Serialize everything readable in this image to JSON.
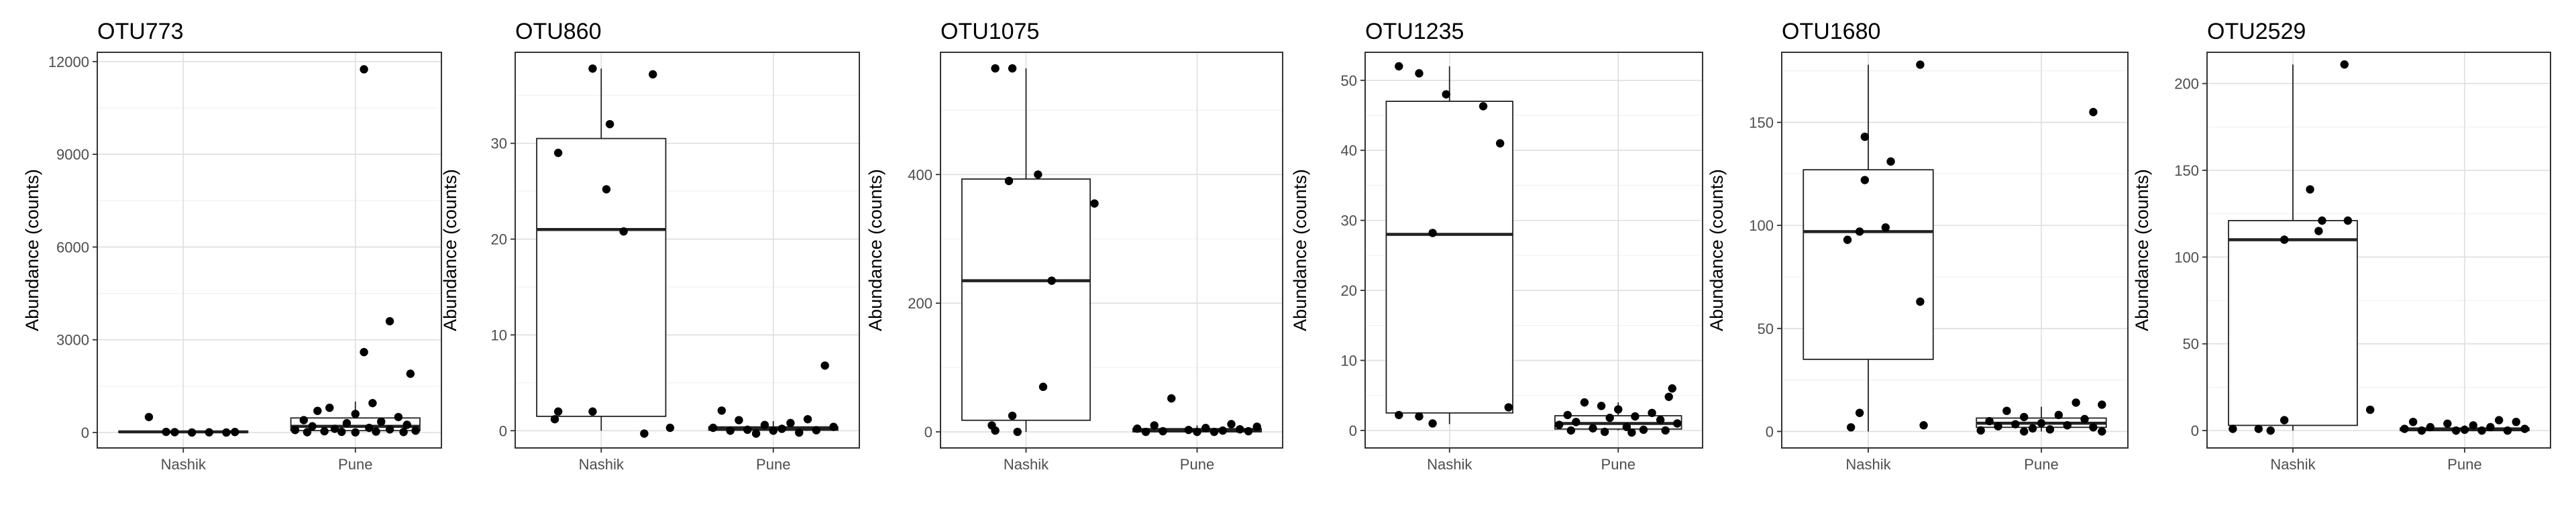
{
  "figure": {
    "background": "#ffffff",
    "panel_border_color": "#333333",
    "grid_major_color": "#dedede",
    "grid_minor_color": "#f0f0f0",
    "axis_text_color": "#4d4d4d",
    "box_outline_color": "#222222",
    "box_fill_color": "#ffffff",
    "point_color": "#000000",
    "title_color": "#000000"
  },
  "chart_data": [
    {
      "type": "box",
      "title": "OTU773",
      "ylabel": "Abundance (counts)",
      "xlabel": "",
      "categories": [
        "Nashik",
        "Pune"
      ],
      "ylim": [
        -500,
        12300
      ],
      "yticks": [
        0,
        3000,
        6000,
        9000,
        12000
      ],
      "ytick_labels": [
        "0",
        "3000",
        "6000",
        "9000",
        "12000"
      ],
      "grid": true,
      "boxes": [
        {
          "category": "Nashik",
          "q1": 5,
          "median": 20,
          "q3": 40,
          "whisker_low": 0,
          "whisker_high": 60,
          "points": [
            {
              "dx": -0.2,
              "y": 500
            },
            {
              "dx": -0.05,
              "y": 10
            },
            {
              "dx": 0.15,
              "y": 5
            },
            {
              "dx": 0.25,
              "y": 0
            },
            {
              "dx": 0.05,
              "y": 0
            },
            {
              "dx": -0.1,
              "y": 20
            },
            {
              "dx": 0.3,
              "y": 15
            }
          ]
        },
        {
          "category": "Pune",
          "q1": 60,
          "median": 200,
          "q3": 470,
          "whisker_low": 0,
          "whisker_high": 1000,
          "points": [
            {
              "dx": 0.05,
              "y": 11750
            },
            {
              "dx": 0.2,
              "y": 3600
            },
            {
              "dx": 0.05,
              "y": 2600
            },
            {
              "dx": 0.32,
              "y": 1900
            },
            {
              "dx": 0.1,
              "y": 950
            },
            {
              "dx": -0.15,
              "y": 800
            },
            {
              "dx": -0.22,
              "y": 700
            },
            {
              "dx": 0.0,
              "y": 600
            },
            {
              "dx": 0.25,
              "y": 500
            },
            {
              "dx": -0.3,
              "y": 400
            },
            {
              "dx": 0.15,
              "y": 350
            },
            {
              "dx": -0.05,
              "y": 300
            },
            {
              "dx": 0.3,
              "y": 250
            },
            {
              "dx": -0.25,
              "y": 200
            },
            {
              "dx": 0.08,
              "y": 150
            },
            {
              "dx": -0.12,
              "y": 120
            },
            {
              "dx": 0.2,
              "y": 100
            },
            {
              "dx": -0.35,
              "y": 80
            },
            {
              "dx": 0.35,
              "y": 60
            },
            {
              "dx": -0.18,
              "y": 40
            },
            {
              "dx": 0.12,
              "y": 30
            },
            {
              "dx": -0.08,
              "y": 20
            },
            {
              "dx": 0.28,
              "y": 15
            },
            {
              "dx": -0.28,
              "y": 10
            },
            {
              "dx": 0.0,
              "y": 5
            }
          ]
        }
      ]
    },
    {
      "type": "box",
      "title": "OTU860",
      "ylabel": "Abundance (counts)",
      "xlabel": "",
      "categories": [
        "Nashik",
        "Pune"
      ],
      "ylim": [
        -1.8,
        39.5
      ],
      "yticks": [
        0,
        10,
        20,
        30
      ],
      "ytick_labels": [
        "0",
        "10",
        "20",
        "30"
      ],
      "grid": true,
      "boxes": [
        {
          "category": "Nashik",
          "q1": 1.5,
          "median": 21,
          "q3": 30.5,
          "whisker_low": 0,
          "whisker_high": 37.8,
          "points": [
            {
              "dx": -0.05,
              "y": 37.8
            },
            {
              "dx": 0.3,
              "y": 37.2
            },
            {
              "dx": 0.05,
              "y": 32
            },
            {
              "dx": -0.25,
              "y": 29
            },
            {
              "dx": 0.03,
              "y": 25.2
            },
            {
              "dx": 0.13,
              "y": 20.8
            },
            {
              "dx": -0.25,
              "y": 2
            },
            {
              "dx": -0.05,
              "y": 2
            },
            {
              "dx": -0.27,
              "y": 1.2
            },
            {
              "dx": 0.4,
              "y": 0.3
            },
            {
              "dx": 0.25,
              "y": -0.3
            }
          ]
        },
        {
          "category": "Pune",
          "q1": 0.05,
          "median": 0.2,
          "q3": 0.4,
          "whisker_low": 0,
          "whisker_high": 1.0,
          "points": [
            {
              "dx": 0.3,
              "y": 6.8
            },
            {
              "dx": -0.3,
              "y": 2.1
            },
            {
              "dx": -0.2,
              "y": 1.1
            },
            {
              "dx": 0.2,
              "y": 1.2
            },
            {
              "dx": 0.1,
              "y": 0.8
            },
            {
              "dx": -0.05,
              "y": 0.6
            },
            {
              "dx": 0.35,
              "y": 0.4
            },
            {
              "dx": -0.35,
              "y": 0.3
            },
            {
              "dx": 0.05,
              "y": 0.2
            },
            {
              "dx": -0.15,
              "y": 0.1
            },
            {
              "dx": 0.25,
              "y": 0.05
            },
            {
              "dx": -0.25,
              "y": 0
            },
            {
              "dx": 0.0,
              "y": 0
            },
            {
              "dx": 0.15,
              "y": -0.2
            },
            {
              "dx": -0.1,
              "y": -0.3
            }
          ]
        }
      ]
    },
    {
      "type": "box",
      "title": "OTU1075",
      "ylabel": "Abundance (counts)",
      "xlabel": "",
      "categories": [
        "Nashik",
        "Pune"
      ],
      "ylim": [
        -25,
        590
      ],
      "yticks": [
        0,
        200,
        400
      ],
      "ytick_labels": [
        "0",
        "200",
        "400"
      ],
      "grid": true,
      "boxes": [
        {
          "category": "Nashik",
          "q1": 18,
          "median": 235,
          "q3": 393,
          "whisker_low": 0,
          "whisker_high": 565,
          "points": [
            {
              "dx": -0.18,
              "y": 565
            },
            {
              "dx": -0.08,
              "y": 565
            },
            {
              "dx": 0.07,
              "y": 400
            },
            {
              "dx": -0.1,
              "y": 390
            },
            {
              "dx": 0.4,
              "y": 355
            },
            {
              "dx": 0.15,
              "y": 235
            },
            {
              "dx": 0.1,
              "y": 70
            },
            {
              "dx": -0.08,
              "y": 25
            },
            {
              "dx": -0.2,
              "y": 10
            },
            {
              "dx": -0.18,
              "y": 2
            },
            {
              "dx": -0.05,
              "y": 0
            }
          ]
        },
        {
          "category": "Pune",
          "q1": 0,
          "median": 2,
          "q3": 5,
          "whisker_low": 0,
          "whisker_high": 10,
          "points": [
            {
              "dx": -0.15,
              "y": 52
            },
            {
              "dx": 0.2,
              "y": 12
            },
            {
              "dx": -0.25,
              "y": 10
            },
            {
              "dx": 0.35,
              "y": 8
            },
            {
              "dx": 0.05,
              "y": 6
            },
            {
              "dx": -0.35,
              "y": 5
            },
            {
              "dx": 0.25,
              "y": 4
            },
            {
              "dx": -0.05,
              "y": 3
            },
            {
              "dx": 0.15,
              "y": 2
            },
            {
              "dx": -0.2,
              "y": 1
            },
            {
              "dx": 0.3,
              "y": 1
            },
            {
              "dx": -0.3,
              "y": 0
            },
            {
              "dx": 0.1,
              "y": 0
            },
            {
              "dx": 0.0,
              "y": 0
            }
          ]
        }
      ]
    },
    {
      "type": "box",
      "title": "OTU1235",
      "ylabel": "Abundance (counts)",
      "xlabel": "",
      "categories": [
        "Nashik",
        "Pune"
      ],
      "ylim": [
        -2.5,
        54
      ],
      "yticks": [
        0,
        10,
        20,
        30,
        40,
        50
      ],
      "ytick_labels": [
        "0",
        "10",
        "20",
        "30",
        "40",
        "50"
      ],
      "grid": true,
      "boxes": [
        {
          "category": "Nashik",
          "q1": 2.5,
          "median": 28,
          "q3": 47,
          "whisker_low": 0.9,
          "whisker_high": 52,
          "points": [
            {
              "dx": -0.3,
              "y": 52
            },
            {
              "dx": -0.18,
              "y": 51
            },
            {
              "dx": -0.02,
              "y": 48
            },
            {
              "dx": 0.2,
              "y": 46.3
            },
            {
              "dx": 0.3,
              "y": 41
            },
            {
              "dx": -0.1,
              "y": 28.2
            },
            {
              "dx": 0.35,
              "y": 3.3
            },
            {
              "dx": -0.3,
              "y": 2.2
            },
            {
              "dx": -0.18,
              "y": 2
            },
            {
              "dx": -0.1,
              "y": 1
            }
          ]
        },
        {
          "category": "Pune",
          "q1": 0.2,
          "median": 1,
          "q3": 2.1,
          "whisker_low": 0,
          "whisker_high": 4,
          "points": [
            {
              "dx": 0.32,
              "y": 6
            },
            {
              "dx": 0.3,
              "y": 4.8
            },
            {
              "dx": -0.2,
              "y": 4
            },
            {
              "dx": -0.1,
              "y": 3.5
            },
            {
              "dx": 0.0,
              "y": 3
            },
            {
              "dx": 0.2,
              "y": 2.5
            },
            {
              "dx": -0.3,
              "y": 2.2
            },
            {
              "dx": 0.1,
              "y": 2
            },
            {
              "dx": -0.05,
              "y": 1.8
            },
            {
              "dx": 0.25,
              "y": 1.5
            },
            {
              "dx": -0.25,
              "y": 1.2
            },
            {
              "dx": 0.35,
              "y": 1
            },
            {
              "dx": -0.35,
              "y": 0.8
            },
            {
              "dx": 0.05,
              "y": 0.5
            },
            {
              "dx": -0.15,
              "y": 0.3
            },
            {
              "dx": 0.15,
              "y": 0.1
            },
            {
              "dx": -0.28,
              "y": 0
            },
            {
              "dx": 0.28,
              "y": 0
            },
            {
              "dx": -0.08,
              "y": -0.2
            },
            {
              "dx": 0.08,
              "y": -0.3
            }
          ]
        }
      ]
    },
    {
      "type": "box",
      "title": "OTU1680",
      "ylabel": "Abundance (counts)",
      "xlabel": "",
      "categories": [
        "Nashik",
        "Pune"
      ],
      "ylim": [
        -8,
        184
      ],
      "yticks": [
        0,
        50,
        100,
        150
      ],
      "ytick_labels": [
        "0",
        "50",
        "100",
        "150"
      ],
      "grid": true,
      "boxes": [
        {
          "category": "Nashik",
          "q1": 35,
          "median": 97,
          "q3": 127,
          "whisker_low": 0,
          "whisker_high": 178,
          "points": [
            {
              "dx": 0.3,
              "y": 178
            },
            {
              "dx": -0.02,
              "y": 143
            },
            {
              "dx": 0.13,
              "y": 131
            },
            {
              "dx": -0.02,
              "y": 122
            },
            {
              "dx": 0.1,
              "y": 99
            },
            {
              "dx": -0.05,
              "y": 97
            },
            {
              "dx": -0.12,
              "y": 93
            },
            {
              "dx": 0.3,
              "y": 63
            },
            {
              "dx": -0.05,
              "y": 9
            },
            {
              "dx": 0.32,
              "y": 3
            },
            {
              "dx": -0.1,
              "y": 2
            }
          ]
        },
        {
          "category": "Pune",
          "q1": 2,
          "median": 4,
          "q3": 6.5,
          "whisker_low": 0,
          "whisker_high": 12,
          "points": [
            {
              "dx": 0.3,
              "y": 155
            },
            {
              "dx": 0.2,
              "y": 14
            },
            {
              "dx": 0.35,
              "y": 13
            },
            {
              "dx": -0.2,
              "y": 10
            },
            {
              "dx": 0.1,
              "y": 8
            },
            {
              "dx": -0.1,
              "y": 7
            },
            {
              "dx": 0.25,
              "y": 6
            },
            {
              "dx": -0.3,
              "y": 5
            },
            {
              "dx": 0.0,
              "y": 4
            },
            {
              "dx": -0.15,
              "y": 3.5
            },
            {
              "dx": 0.15,
              "y": 3
            },
            {
              "dx": -0.25,
              "y": 2.5
            },
            {
              "dx": 0.3,
              "y": 2
            },
            {
              "dx": -0.05,
              "y": 1.5
            },
            {
              "dx": 0.05,
              "y": 1
            },
            {
              "dx": -0.35,
              "y": 0.5
            },
            {
              "dx": 0.35,
              "y": 0
            },
            {
              "dx": -0.1,
              "y": 0
            }
          ]
        }
      ]
    },
    {
      "type": "box",
      "title": "OTU2529",
      "ylabel": "Abundance (counts)",
      "xlabel": "",
      "categories": [
        "Nashik",
        "Pune"
      ],
      "ylim": [
        -10,
        218
      ],
      "yticks": [
        0,
        50,
        100,
        150,
        200
      ],
      "ytick_labels": [
        "0",
        "50",
        "100",
        "150",
        "200"
      ],
      "grid": true,
      "boxes": [
        {
          "category": "Nashik",
          "q1": 3,
          "median": 110,
          "q3": 121,
          "whisker_low": 0,
          "whisker_high": 211,
          "points": [
            {
              "dx": 0.3,
              "y": 211
            },
            {
              "dx": 0.1,
              "y": 139
            },
            {
              "dx": 0.17,
              "y": 121
            },
            {
              "dx": 0.32,
              "y": 121
            },
            {
              "dx": 0.15,
              "y": 115
            },
            {
              "dx": -0.05,
              "y": 110
            },
            {
              "dx": 0.45,
              "y": 12
            },
            {
              "dx": -0.05,
              "y": 6
            },
            {
              "dx": -0.2,
              "y": 1
            },
            {
              "dx": -0.35,
              "y": 1
            },
            {
              "dx": -0.13,
              "y": 0
            }
          ]
        },
        {
          "category": "Pune",
          "q1": 0,
          "median": 0.5,
          "q3": 1.5,
          "whisker_low": 0,
          "whisker_high": 3,
          "points": [
            {
              "dx": -0.3,
              "y": 5
            },
            {
              "dx": 0.2,
              "y": 6
            },
            {
              "dx": -0.1,
              "y": 4
            },
            {
              "dx": 0.3,
              "y": 5
            },
            {
              "dx": 0.05,
              "y": 3
            },
            {
              "dx": -0.2,
              "y": 2
            },
            {
              "dx": 0.15,
              "y": 2
            },
            {
              "dx": -0.35,
              "y": 1
            },
            {
              "dx": 0.35,
              "y": 1
            },
            {
              "dx": 0.0,
              "y": 0.5
            },
            {
              "dx": -0.05,
              "y": 0
            },
            {
              "dx": 0.25,
              "y": 0
            },
            {
              "dx": -0.25,
              "y": 0
            },
            {
              "dx": 0.1,
              "y": 0
            }
          ]
        }
      ]
    }
  ]
}
